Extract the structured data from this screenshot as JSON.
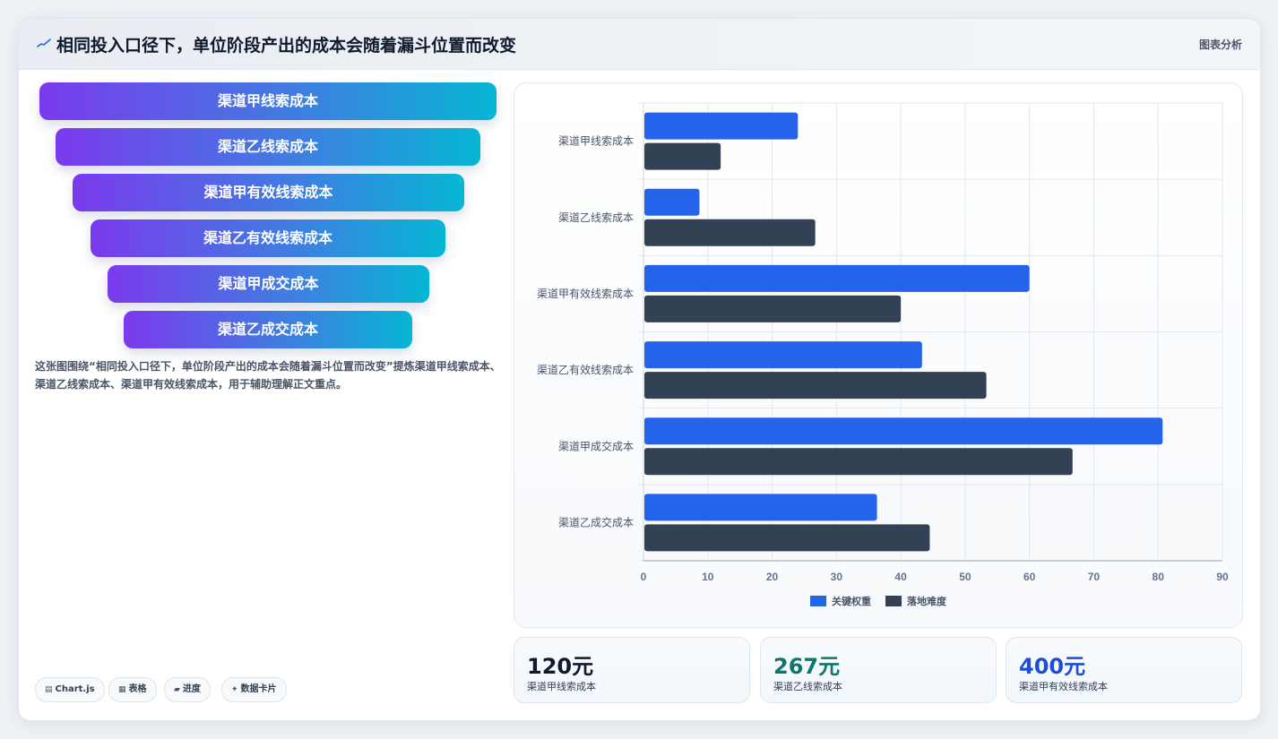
{
  "header": {
    "title": "相同投入口径下，单位阶段产出的成本会随着漏斗位置而改变",
    "tag": "图表分析"
  },
  "funnel": {
    "steps": [
      "渠道甲线索成本",
      "渠道乙线索成本",
      "渠道甲有效线索成本",
      "渠道乙有效线索成本",
      "渠道甲成交成本",
      "渠道乙成交成本"
    ]
  },
  "description": "这张图围绕“相同投入口径下，单位阶段产出的成本会随着漏斗位置而改变”提炼渠道甲线索成本、渠道乙线索成本、渠道甲有效线索成本，用于辅助理解正文重点。",
  "chips": [
    {
      "icon": "chart-icon",
      "glyph": "▤",
      "label": "Chart.js"
    },
    {
      "icon": "table-icon",
      "glyph": "▦",
      "label": "表格"
    },
    {
      "icon": "progress-icon",
      "glyph": "▰",
      "label": "进度"
    },
    {
      "icon": "sparkle-icon",
      "glyph": "✦",
      "label": "数据卡片"
    }
  ],
  "chart_data": {
    "type": "bar",
    "orientation": "horizontal",
    "categories": [
      "渠道甲线索成本",
      "渠道乙线索成本",
      "渠道甲有效线索成本",
      "渠道乙有效线索成本",
      "渠道甲成交成本",
      "渠道乙成交成本"
    ],
    "series": [
      {
        "name": "关键权重",
        "color": "#2563eb",
        "values": [
          24,
          8.7,
          60,
          43.3,
          80.7,
          36.3
        ]
      },
      {
        "name": "落地难度",
        "color": "#334155",
        "values": [
          12,
          26.7,
          40,
          53.3,
          66.7,
          44.5
        ]
      }
    ],
    "xlim": [
      0,
      90
    ],
    "xticks": [
      0,
      10,
      20,
      30,
      40,
      50,
      60,
      70,
      80,
      90
    ],
    "grid": true,
    "legend_position": "bottom"
  },
  "stats": [
    {
      "value": "120元",
      "label": "渠道甲线索成本",
      "color": "#0f1b2d"
    },
    {
      "value": "267元",
      "label": "渠道乙线索成本",
      "color": "#0f766e"
    },
    {
      "value": "400元",
      "label": "渠道甲有效线索成本",
      "color": "#1d4ed8"
    }
  ]
}
